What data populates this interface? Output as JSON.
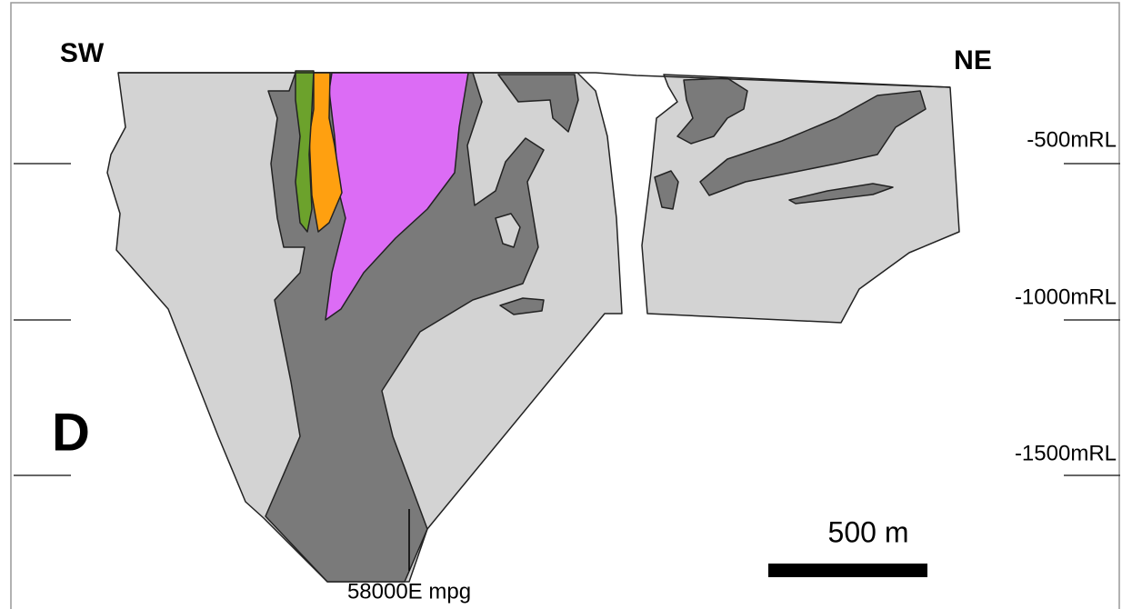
{
  "orientation": {
    "left": "SW",
    "right": "NE"
  },
  "elevation_labels": [
    "-500mRL",
    "-1000mRL",
    "-1500mRL"
  ],
  "panel_label": "D",
  "scale_bar": "500 m",
  "section_label": "58000E mpg"
}
